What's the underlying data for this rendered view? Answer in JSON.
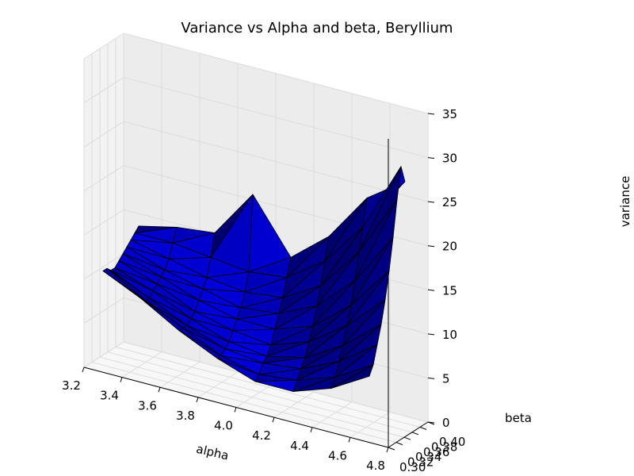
{
  "chart_data": {
    "type": "surface",
    "title": "Variance vs Alpha and beta, Beryllium",
    "xlabel": "alpha",
    "ylabel": "beta",
    "zlabel": "variance",
    "xlim": [
      3.2,
      4.8
    ],
    "ylim": [
      0.3,
      0.4
    ],
    "zlim": [
      0,
      35
    ],
    "x_ticks": [
      "3.2",
      "3.4",
      "3.6",
      "3.8",
      "4.0",
      "4.2",
      "4.4",
      "4.6",
      "4.8"
    ],
    "y_ticks": [
      "0.30",
      "0.32",
      "0.34",
      "0.36",
      "0.38",
      "0.40"
    ],
    "z_ticks": [
      "0",
      "5",
      "10",
      "15",
      "20",
      "25",
      "30",
      "35"
    ],
    "grid": true,
    "surface_color": "#0000ff",
    "edge_color": "#000000",
    "alpha": [
      3.3,
      3.5,
      3.7,
      3.9,
      4.1,
      4.3,
      4.5,
      4.7
    ],
    "beta": [
      0.3,
      0.31,
      0.32,
      0.33,
      0.34,
      0.35,
      0.36,
      0.37,
      0.38,
      0.39
    ],
    "variance": [
      [
        11.5,
        9.5,
        7.0,
        5.0,
        3.5,
        3.5,
        5.0,
        7.5
      ],
      [
        11.5,
        9.0,
        7.0,
        5.0,
        4.0,
        4.5,
        6.0,
        8.5
      ],
      [
        11.0,
        9.0,
        7.0,
        5.5,
        5.0,
        5.5,
        7.5,
        10.5
      ],
      [
        11.0,
        9.5,
        7.5,
        6.0,
        5.5,
        6.5,
        9.0,
        12.5
      ],
      [
        11.5,
        10.0,
        8.0,
        7.0,
        6.5,
        8.0,
        11.0,
        15.0
      ],
      [
        12.0,
        10.5,
        9.0,
        8.0,
        8.0,
        9.5,
        13.0,
        18.0
      ],
      [
        12.5,
        11.0,
        10.0,
        9.0,
        9.5,
        11.5,
        15.5,
        21.5
      ],
      [
        13.0,
        12.0,
        11.0,
        10.5,
        11.0,
        13.5,
        18.5,
        25.5
      ],
      [
        13.5,
        13.5,
        13.0,
        12.5,
        13.0,
        16.0,
        21.0,
        29.0
      ],
      [
        14.0,
        15.0,
        15.5,
        21.0,
        15.0,
        18.5,
        24.0,
        27.0
      ]
    ]
  }
}
